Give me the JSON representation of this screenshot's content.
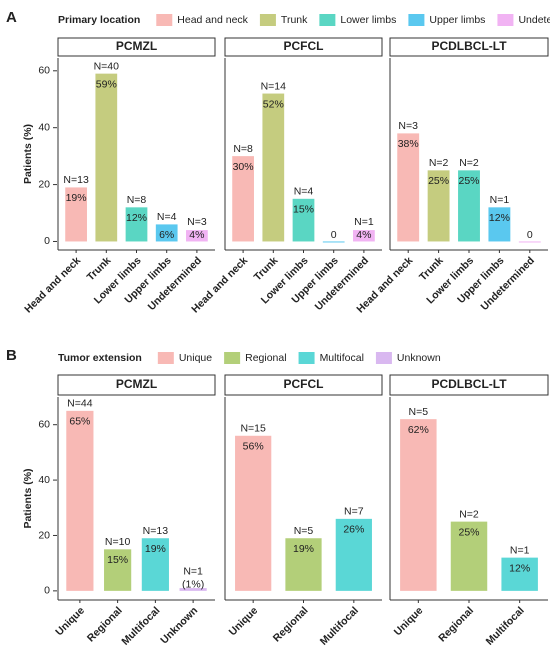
{
  "chart_data": [
    {
      "type": "bar",
      "panel_label": "A",
      "legend_title": "Primary location",
      "ylabel": "Patients (%)",
      "legend": {
        "categories": [
          "Head and neck",
          "Trunk",
          "Lower limbs",
          "Upper limbs",
          "Undetermined"
        ],
        "colors": [
          "#f8b9b5",
          "#c5cc7f",
          "#5ad6c3",
          "#5ac8ef",
          "#f1b3f3"
        ]
      },
      "ylim": [
        -3,
        64.5
      ],
      "yticks": [
        0,
        20,
        40,
        60
      ],
      "facets": [
        {
          "title": "PCMZL",
          "categories": [
            "Head and neck",
            "Trunk",
            "Lower limbs",
            "Upper limbs",
            "Undetermined"
          ],
          "values": [
            19,
            59,
            12,
            6,
            4
          ],
          "value_labels": [
            "19%",
            "59%",
            "12%",
            "6%",
            "4%"
          ],
          "n_labels": [
            "N=13",
            "N=40",
            "N=8",
            "N=4",
            "N=3"
          ]
        },
        {
          "title": "PCFCL",
          "categories": [
            "Head and neck",
            "Trunk",
            "Lower limbs",
            "Upper limbs",
            "Undetermined"
          ],
          "values": [
            30,
            52,
            15,
            0,
            4
          ],
          "value_labels": [
            "30%",
            "52%",
            "15%",
            "0",
            "4%"
          ],
          "n_labels": [
            "N=8",
            "N=14",
            "N=4",
            null,
            "N=1"
          ]
        },
        {
          "title": "PCDLBCL-LT",
          "categories": [
            "Head and neck",
            "Trunk",
            "Lower limbs",
            "Upper limbs",
            "Undetermined"
          ],
          "values": [
            38,
            25,
            25,
            12,
            0
          ],
          "value_labels": [
            "38%",
            "25%",
            "25%",
            "12%",
            "0"
          ],
          "n_labels": [
            "N=3",
            "N=2",
            "N=2",
            "N=1",
            null
          ]
        }
      ]
    },
    {
      "type": "bar",
      "panel_label": "B",
      "legend_title": "Tumor extension",
      "ylabel": "Patients (%)",
      "legend": {
        "categories": [
          "Unique",
          "Regional",
          "Multifocal",
          "Unknown"
        ],
        "colors": [
          "#f8b9b5",
          "#b3cf79",
          "#5ad7d6",
          "#d9b8f0"
        ]
      },
      "ylim": [
        -3.3,
        70
      ],
      "yticks": [
        0,
        20,
        40,
        60
      ],
      "facets": [
        {
          "title": "PCMZL",
          "categories": [
            "Unique",
            "Regional",
            "Multifocal",
            "Unknown"
          ],
          "values": [
            65,
            15,
            19,
            1
          ],
          "value_labels": [
            "65%",
            "15%",
            "19%",
            "(1%)"
          ],
          "n_labels": [
            "N=44",
            "N=10",
            "N=13",
            "N=1"
          ]
        },
        {
          "title": "PCFCL",
          "categories": [
            "Unique",
            "Regional",
            "Multifocal"
          ],
          "values": [
            56,
            19,
            26
          ],
          "value_labels": [
            "56%",
            "19%",
            "26%"
          ],
          "n_labels": [
            "N=15",
            "N=5",
            "N=7"
          ]
        },
        {
          "title": "PCDLBCL-LT",
          "categories": [
            "Unique",
            "Regional",
            "Multifocal"
          ],
          "values": [
            62,
            25,
            12
          ],
          "value_labels": [
            "62%",
            "25%",
            "12%"
          ],
          "n_labels": [
            "N=5",
            "N=2",
            "N=1"
          ]
        }
      ]
    }
  ]
}
